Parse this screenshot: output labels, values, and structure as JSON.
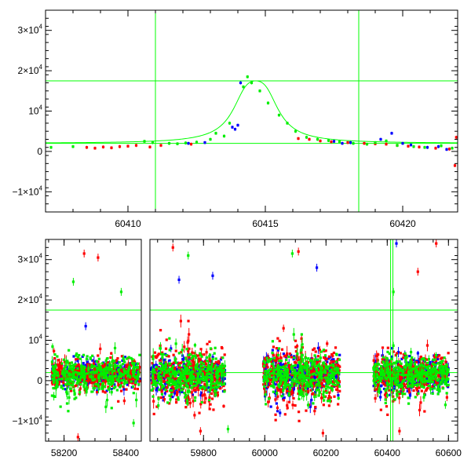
{
  "colors": {
    "red": "#ff0000",
    "green": "#00ee00",
    "blue": "#0000ff",
    "frame": "#000000",
    "guide": "#00ff00"
  },
  "chart_data": [
    {
      "id": "top",
      "type": "scatter",
      "title": "",
      "xlabel": "",
      "ylabel": "",
      "xlim": [
        60407,
        60422
      ],
      "ylim": [
        -15000,
        35000
      ],
      "xticks": [
        60410,
        60415,
        60420
      ],
      "xtick_labels": [
        "60410",
        "60415",
        "60420"
      ],
      "yticks": [
        -10000,
        0,
        10000,
        20000,
        30000
      ],
      "ytick_labels": [
        {
          "mantissa": "−1×10",
          "exp": "4"
        },
        {
          "mantissa": "0",
          "exp": ""
        },
        {
          "mantissa": "10",
          "exp": "4"
        },
        {
          "mantissa": "2×10",
          "exp": "4"
        },
        {
          "mantissa": "3×10",
          "exp": "4"
        }
      ],
      "hlines": [
        17500,
        2000
      ],
      "vlines": [
        60411.0,
        60418.4
      ],
      "model_curve": {
        "peak_x": 60414.65,
        "peak_y": 17500,
        "baseline": 2000,
        "width": 0.8,
        "x": [
          60410.5,
          60411.5,
          60412.5,
          60413.0,
          60413.5,
          60414.0,
          60414.3,
          60414.65,
          60415.0,
          60415.4,
          60415.8,
          60416.3,
          60417.0,
          60418.0,
          60419.5
        ],
        "y": [
          2050,
          2200,
          2800,
          3700,
          5600,
          9800,
          13600,
          17500,
          14500,
          9500,
          6000,
          3800,
          2700,
          2200,
          2050
        ]
      },
      "series": [
        {
          "name": "",
          "color": "red",
          "x": [
            60408.5,
            60408.8,
            60409.1,
            60409.4,
            60409.7,
            60410.0,
            60410.3,
            60410.8,
            60411.2,
            60412.3,
            60416.2,
            60416.6,
            60417.0,
            60417.4,
            60418.0,
            60418.6,
            60419.0,
            60419.4,
            60419.8,
            60420.2,
            60420.6,
            60421.2,
            60421.7,
            60421.9,
            60421.95
          ],
          "y": [
            1000,
            800,
            1100,
            900,
            1200,
            1300,
            1500,
            1100,
            1500,
            1800,
            3200,
            3000,
            2600,
            2400,
            2200,
            2000,
            1900,
            1800,
            1500,
            1300,
            1100,
            800,
            600,
            -3500,
            3500
          ]
        },
        {
          "name": "",
          "color": "blue",
          "x": [
            60412.2,
            60412.8,
            60413.8,
            60414.0,
            60414.1,
            60413.9,
            60417.5,
            60417.8,
            60418.1,
            60419.2,
            60419.6,
            60420.0,
            60420.3,
            60420.9,
            60421.3,
            60421.6
          ],
          "y": [
            2000,
            2200,
            6000,
            6500,
            17000,
            5500,
            2500,
            2000,
            2200,
            3000,
            4500,
            2000,
            1600,
            1000,
            1200,
            500
          ]
        },
        {
          "name": "",
          "color": "green",
          "x": [
            60407.2,
            60408.0,
            60410.6,
            60410.9,
            60411.5,
            60411.8,
            60412.1,
            60412.5,
            60413.0,
            60413.2,
            60413.5,
            60413.7,
            60414.2,
            60414.35,
            60414.5,
            60414.8,
            60415.1,
            60415.5,
            60415.8,
            60416.1,
            60416.5,
            60416.9,
            60417.3,
            60417.7,
            60418.2,
            60418.7,
            60419.0,
            60419.4,
            60419.8,
            60420.4,
            60420.8,
            60421.4,
            60421.8
          ],
          "y": [
            1000,
            1200,
            2500,
            2200,
            2000,
            1900,
            2100,
            2300,
            3000,
            4500,
            3800,
            7000,
            16000,
            18500,
            17000,
            15000,
            12000,
            9000,
            7000,
            5000,
            3500,
            3000,
            2700,
            2400,
            2000,
            1800,
            2200,
            2600,
            1500,
            1200,
            1000,
            1400,
            800
          ]
        }
      ]
    },
    {
      "id": "bottom",
      "type": "scatter",
      "title": "",
      "xlabel": "",
      "ylabel": "",
      "ylim": [
        -15000,
        35000
      ],
      "segments": [
        {
          "xlim": [
            58140,
            58450
          ],
          "xticks": [
            58200,
            58400
          ],
          "xtick_labels": [
            "58200",
            "58400"
          ]
        },
        {
          "xlim": [
            59625,
            60630
          ],
          "xticks": [
            59800,
            60000,
            60200,
            60400,
            60600
          ],
          "xtick_labels": [
            "59800",
            "60000",
            "60200",
            "60400",
            "60600"
          ]
        }
      ],
      "yticks": [
        -10000,
        0,
        10000,
        20000,
        30000
      ],
      "ytick_labels": [
        {
          "mantissa": "−1×10",
          "exp": "4"
        },
        {
          "mantissa": "0",
          "exp": ""
        },
        {
          "mantissa": "10",
          "exp": "4"
        },
        {
          "mantissa": "2×10",
          "exp": "4"
        },
        {
          "mantissa": "3×10",
          "exp": "4"
        }
      ],
      "hlines": [
        17500,
        2000
      ],
      "vlines": [
        60411.0,
        60418.4
      ],
      "seasons": [
        {
          "range": [
            58160,
            58445
          ],
          "red_scatter": 4000,
          "green_scatter": 5000,
          "blue_scatter": 3000
        },
        {
          "range": [
            59630,
            59870
          ],
          "red_scatter": 8000,
          "green_scatter": 5500,
          "blue_scatter": 4500
        },
        {
          "range": [
            59995,
            60245
          ],
          "red_scatter": 8000,
          "green_scatter": 6000,
          "blue_scatter": 5000
        },
        {
          "range": [
            60355,
            60600
          ],
          "red_scatter": 5500,
          "green_scatter": 5000,
          "blue_scatter": 4000
        }
      ],
      "outliers": [
        {
          "color": "red",
          "x": 58265,
          "y": 31500
        },
        {
          "color": "red",
          "x": 58310,
          "y": 30500
        },
        {
          "color": "red",
          "x": 58245,
          "y": -14000
        },
        {
          "color": "red",
          "x": 58395,
          "y": -5000
        },
        {
          "color": "red",
          "x": 59700,
          "y": 33000
        },
        {
          "color": "red",
          "x": 59790,
          "y": -12500
        },
        {
          "color": "red",
          "x": 60110,
          "y": 32000
        },
        {
          "color": "red",
          "x": 60190,
          "y": -13000
        },
        {
          "color": "red",
          "x": 60500,
          "y": 27000
        },
        {
          "color": "red",
          "x": 60560,
          "y": 34000
        },
        {
          "color": "red",
          "x": 60440,
          "y": -12500
        },
        {
          "color": "green",
          "x": 58230,
          "y": 24500
        },
        {
          "color": "green",
          "x": 58385,
          "y": 22000
        },
        {
          "color": "green",
          "x": 58425,
          "y": -10500
        },
        {
          "color": "green",
          "x": 59750,
          "y": 31000
        },
        {
          "color": "green",
          "x": 59880,
          "y": -12000
        },
        {
          "color": "green",
          "x": 60090,
          "y": 31500
        },
        {
          "color": "green",
          "x": 60420,
          "y": 22000
        },
        {
          "color": "green",
          "x": 60590,
          "y": -6000
        },
        {
          "color": "blue",
          "x": 58270,
          "y": 13500
        },
        {
          "color": "blue",
          "x": 59720,
          "y": 25000
        },
        {
          "color": "blue",
          "x": 59830,
          "y": 26000
        },
        {
          "color": "blue",
          "x": 60170,
          "y": 28000
        },
        {
          "color": "blue",
          "x": 60430,
          "y": 34000
        },
        {
          "color": "blue",
          "x": 60050,
          "y": -8000
        }
      ]
    }
  ]
}
